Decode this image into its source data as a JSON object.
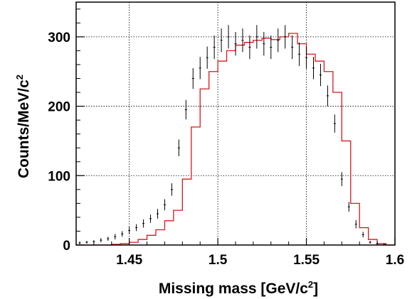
{
  "chart_data": {
    "type": "line",
    "xlabel": "Missing mass [GeV/c",
    "xlabel_sup": "2",
    "xlabel_end": "]",
    "ylabel": "Counts/MeV/c",
    "ylabel_sup": "2",
    "xlim": [
      1.42,
      1.6
    ],
    "ylim": [
      0,
      350
    ],
    "x_ticks": [
      1.45,
      1.5,
      1.55,
      1.6
    ],
    "x_tick_labels": [
      "1.45",
      "1.5",
      "1.55",
      "1.6"
    ],
    "y_ticks": [
      0,
      100,
      200,
      300
    ],
    "y_tick_labels": [
      "0",
      "100",
      "200",
      "300"
    ],
    "grid": true,
    "grid_style": "dotted",
    "series": [
      {
        "style": "error-bar points",
        "color": "#000000",
        "x": [
          1.422,
          1.426,
          1.43,
          1.434,
          1.438,
          1.442,
          1.446,
          1.45,
          1.454,
          1.458,
          1.462,
          1.466,
          1.47,
          1.474,
          1.478,
          1.482,
          1.486,
          1.49,
          1.494,
          1.498,
          1.502,
          1.506,
          1.51,
          1.514,
          1.518,
          1.522,
          1.526,
          1.53,
          1.534,
          1.538,
          1.542,
          1.546,
          1.55,
          1.554,
          1.558,
          1.562,
          1.566,
          1.57,
          1.574,
          1.578,
          1.582,
          1.586,
          1.59,
          1.594,
          1.598
        ],
        "y": [
          3,
          4,
          5,
          7,
          9,
          12,
          16,
          21,
          25,
          31,
          38,
          45,
          58,
          80,
          140,
          195,
          240,
          255,
          270,
          285,
          295,
          300,
          290,
          295,
          285,
          300,
          290,
          285,
          295,
          300,
          285,
          275,
          270,
          255,
          245,
          215,
          175,
          95,
          55,
          30,
          15,
          4,
          2,
          1,
          0
        ],
        "yerr": [
          2,
          2,
          2,
          3,
          3,
          4,
          4,
          5,
          5,
          6,
          6,
          7,
          8,
          9,
          12,
          14,
          15,
          16,
          16,
          17,
          17,
          17,
          17,
          17,
          17,
          17,
          17,
          17,
          17,
          17,
          17,
          17,
          16,
          16,
          16,
          15,
          13,
          10,
          7,
          6,
          4,
          2,
          1,
          1,
          0
        ]
      },
      {
        "style": "step histogram",
        "color": "#d7191c",
        "x": [
          1.42,
          1.425,
          1.43,
          1.435,
          1.44,
          1.445,
          1.45,
          1.455,
          1.46,
          1.465,
          1.47,
          1.475,
          1.48,
          1.485,
          1.49,
          1.495,
          1.5,
          1.505,
          1.51,
          1.515,
          1.52,
          1.525,
          1.53,
          1.535,
          1.54,
          1.545,
          1.55,
          1.555,
          1.56,
          1.565,
          1.57,
          1.575,
          1.58,
          1.585,
          1.59,
          1.595
        ],
        "y": [
          0,
          0,
          0,
          0,
          1,
          2,
          4,
          8,
          14,
          22,
          35,
          50,
          95,
          170,
          225,
          250,
          265,
          280,
          288,
          292,
          295,
          298,
          296,
          300,
          305,
          290,
          275,
          265,
          250,
          220,
          150,
          60,
          25,
          8,
          2,
          0
        ]
      }
    ]
  }
}
